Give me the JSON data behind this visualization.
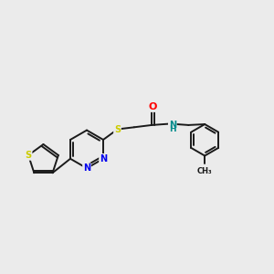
{
  "background_color": "#ebebeb",
  "bond_color": "#1a1a1a",
  "atom_colors": {
    "S": "#cccc00",
    "N": "#0000ee",
    "O": "#ff0000",
    "NH": "#008b8b"
  },
  "figsize": [
    3.0,
    3.0
  ],
  "dpi": 100
}
